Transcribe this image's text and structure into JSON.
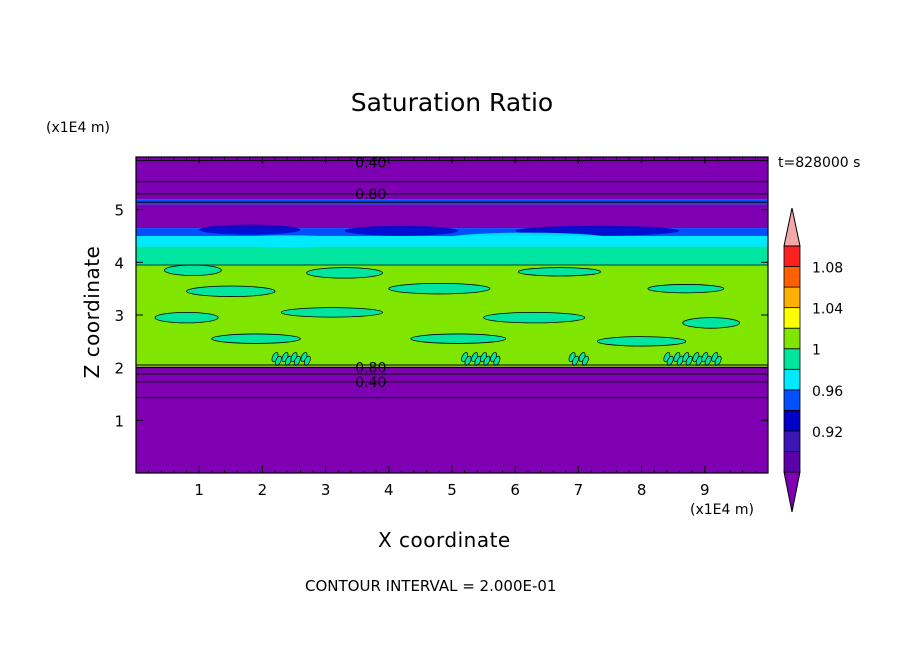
{
  "chart_data": {
    "type": "heatmap",
    "title": "Saturation Ratio",
    "xlabel": "X coordinate",
    "ylabel": "Z coordinate",
    "x_unit_label": "(x1E4 m)",
    "y_unit_label": "(x1E4 m)",
    "xlim": [
      0,
      10
    ],
    "ylim": [
      0,
      6
    ],
    "x_ticks": [
      1,
      2,
      3,
      4,
      5,
      6,
      7,
      8,
      9
    ],
    "y_ticks": [
      1,
      2,
      3,
      4,
      5
    ],
    "time_label": "t=828000 s",
    "contour_interval_label": "CONTOUR INTERVAL = 2.000E-01",
    "contour_labels": [
      {
        "text": "0.40",
        "x": 3.5,
        "z": 5.9
      },
      {
        "text": "0.80",
        "x": 3.5,
        "z": 5.3
      },
      {
        "text": "0.80",
        "x": 3.5,
        "z": 2.0
      },
      {
        "text": "0.40",
        "x": 3.5,
        "z": 1.73
      }
    ],
    "layers": [
      {
        "z0": 0.0,
        "z1": 2.02,
        "color": "#7f00b2"
      },
      {
        "z0": 2.02,
        "z1": 3.95,
        "color": "#80e600"
      },
      {
        "z0": 3.95,
        "z1": 4.3,
        "color": "#00e6a0"
      },
      {
        "z0": 4.3,
        "z1": 4.5,
        "color": "#00eaff"
      },
      {
        "z0": 4.5,
        "z1": 4.65,
        "color": "#0050ff"
      },
      {
        "z0": 4.65,
        "z1": 5.1,
        "color": "#7f00b2"
      },
      {
        "z0": 5.1,
        "z1": 5.2,
        "color": "#0050ff"
      },
      {
        "z0": 5.2,
        "z1": 6.0,
        "color": "#7f00b2"
      }
    ],
    "colorbar": {
      "levels": [
        {
          "label": "",
          "color": "#5a00a8"
        },
        {
          "label": "0.92",
          "color": "#3c16b4"
        },
        {
          "label": "",
          "color": "#0000c8"
        },
        {
          "label": "0.96",
          "color": "#0050ff"
        },
        {
          "label": "",
          "color": "#00eaff"
        },
        {
          "label": "1",
          "color": "#00e6a0"
        },
        {
          "label": "",
          "color": "#80e600"
        },
        {
          "label": "1.04",
          "color": "#ffff00"
        },
        {
          "label": "",
          "color": "#ffb000"
        },
        {
          "label": "1.08",
          "color": "#ff6000"
        },
        {
          "label": "",
          "color": "#ff2020"
        }
      ],
      "under_color": "#7f00b2",
      "over_color": "#f2a8a8"
    }
  }
}
